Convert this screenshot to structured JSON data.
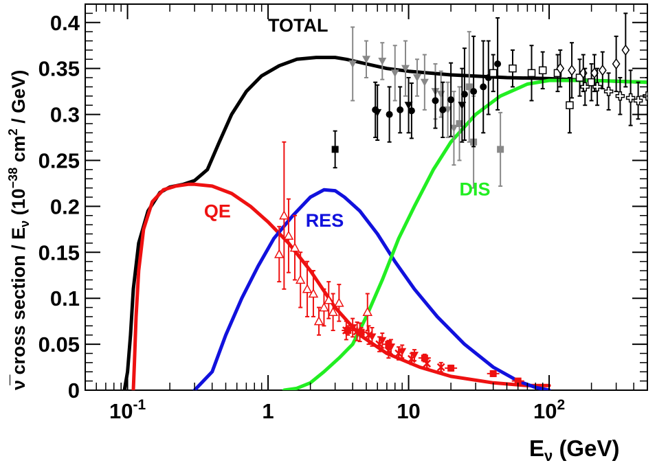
{
  "chart_data": {
    "type": "line",
    "xscale": "log",
    "xlim": [
      0.05,
      500
    ],
    "ylim": [
      0,
      0.42
    ],
    "xlabel": "E",
    "xlabel_sub": "ν",
    "xlabel_unit": "(GeV)",
    "ylabel_parts": {
      "prefix": "ν̅ cross section / E",
      "sub_nu": "ν",
      "open_unit": "(10",
      "exp": "−38",
      "cm": "cm",
      "sq": "2",
      "close_unit": "/ GeV)"
    },
    "x_ticks": [
      {
        "value": 0.1,
        "base": "10",
        "exp": "-1"
      },
      {
        "value": 1,
        "base": "1",
        "exp": ""
      },
      {
        "value": 10,
        "base": "10",
        "exp": ""
      },
      {
        "value": 100,
        "base": "10",
        "exp": "2"
      }
    ],
    "y_ticks": [
      {
        "value": 0,
        "label": "0"
      },
      {
        "value": 0.05,
        "label": "0.05"
      },
      {
        "value": 0.1,
        "label": "0.1"
      },
      {
        "value": 0.15,
        "label": "0.15"
      },
      {
        "value": 0.2,
        "label": "0.2"
      },
      {
        "value": 0.25,
        "label": "0.25"
      },
      {
        "value": 0.3,
        "label": "0.3"
      },
      {
        "value": 0.35,
        "label": "0.35"
      },
      {
        "value": 0.4,
        "label": "0.4"
      }
    ],
    "series": [
      {
        "name": "TOTAL",
        "color": "#000000",
        "label_at": [
          1.0,
          0.39
        ],
        "x": [
          0.095,
          0.1,
          0.105,
          0.11,
          0.12,
          0.14,
          0.17,
          0.2,
          0.25,
          0.3,
          0.37,
          0.45,
          0.55,
          0.7,
          0.9,
          1.2,
          1.6,
          2.2,
          3.0,
          3.6,
          5.0,
          7.0,
          10,
          20,
          50,
          100,
          200,
          500
        ],
        "y": [
          0.0,
          0.02,
          0.06,
          0.11,
          0.16,
          0.195,
          0.215,
          0.221,
          0.224,
          0.228,
          0.24,
          0.27,
          0.3,
          0.325,
          0.342,
          0.353,
          0.36,
          0.362,
          0.362,
          0.36,
          0.355,
          0.35,
          0.347,
          0.343,
          0.34,
          0.339,
          0.337,
          0.335
        ]
      },
      {
        "name": "QE",
        "color": "#ee1111",
        "label_at": [
          0.35,
          0.188
        ],
        "x": [
          0.11,
          0.112,
          0.115,
          0.12,
          0.13,
          0.15,
          0.18,
          0.22,
          0.27,
          0.3,
          0.4,
          0.55,
          0.75,
          1.0,
          1.4,
          2.0,
          3.0,
          4.5,
          7,
          12,
          20,
          40,
          70,
          100
        ],
        "y": [
          0.0,
          0.03,
          0.08,
          0.13,
          0.175,
          0.205,
          0.218,
          0.222,
          0.224,
          0.224,
          0.222,
          0.214,
          0.2,
          0.183,
          0.16,
          0.13,
          0.09,
          0.06,
          0.04,
          0.025,
          0.015,
          0.008,
          0.005,
          0.005
        ]
      },
      {
        "name": "RES",
        "color": "#1111dd",
        "label_at": [
          1.85,
          0.178
        ],
        "x": [
          0.3,
          0.4,
          0.5,
          0.65,
          0.85,
          1.1,
          1.5,
          2.0,
          2.5,
          3.0,
          3.5,
          4.5,
          6,
          8,
          11,
          16,
          25,
          40,
          60,
          80,
          100
        ],
        "y": [
          0.0,
          0.02,
          0.06,
          0.1,
          0.135,
          0.165,
          0.19,
          0.21,
          0.218,
          0.217,
          0.21,
          0.195,
          0.17,
          0.14,
          0.11,
          0.08,
          0.05,
          0.025,
          0.01,
          0.003,
          0.0
        ]
      },
      {
        "name": "DIS",
        "color": "#22ee22",
        "label_at": [
          23,
          0.212
        ],
        "x": [
          1.3,
          1.6,
          2.0,
          2.5,
          3.2,
          4.0,
          5.0,
          6.5,
          8.5,
          11,
          15,
          20,
          30,
          45,
          70,
          100,
          200,
          500
        ],
        "y": [
          0.0,
          0.002,
          0.008,
          0.02,
          0.035,
          0.05,
          0.08,
          0.12,
          0.165,
          0.2,
          0.24,
          0.27,
          0.3,
          0.32,
          0.333,
          0.337,
          0.337,
          0.335
        ]
      }
    ],
    "measurements": [
      {
        "name": "open triangles",
        "color": "#ee1111",
        "marker": "tri-open",
        "points": [
          [
            1.2,
            0.148,
            0.03
          ],
          [
            1.3,
            0.19,
            0.08
          ],
          [
            1.4,
            0.168,
            0.04
          ],
          [
            1.55,
            0.155,
            0.035
          ],
          [
            1.7,
            0.12,
            0.03
          ],
          [
            1.9,
            0.11,
            0.03
          ],
          [
            2.1,
            0.105,
            0.025
          ],
          [
            2.3,
            0.075,
            0.015
          ],
          [
            2.5,
            0.09,
            0.02
          ],
          [
            2.7,
            0.098,
            0.02
          ],
          [
            2.9,
            0.085,
            0.02
          ],
          [
            3.2,
            0.095,
            0.02
          ],
          [
            5.1,
            0.085,
            0.02
          ]
        ]
      },
      {
        "name": "filled down triangles",
        "color": "#ee1111",
        "marker": "tri-down",
        "points": [
          [
            4.0,
            0.068,
            0.01
          ],
          [
            4.5,
            0.063,
            0.01
          ],
          [
            5.5,
            0.058,
            0.01
          ],
          [
            6.5,
            0.054,
            0.008
          ],
          [
            7.5,
            0.047,
            0.008
          ],
          [
            9.0,
            0.042,
            0.007
          ],
          [
            11,
            0.038,
            0.006
          ]
        ]
      },
      {
        "name": "stars",
        "color": "#ee1111",
        "marker": "star",
        "points": [
          [
            3.6,
            0.065,
            0.01
          ],
          [
            4.3,
            0.064,
            0.01
          ],
          [
            5.2,
            0.06,
            0.01
          ],
          [
            6.2,
            0.05,
            0.008
          ],
          [
            7.2,
            0.043,
            0.008
          ],
          [
            8.5,
            0.04,
            0.007
          ],
          [
            10.5,
            0.034,
            0.006
          ],
          [
            13.5,
            0.029,
            0.005
          ],
          [
            17,
            0.025,
            0.005
          ]
        ]
      },
      {
        "name": "red squares",
        "color": "#ee1111",
        "marker": "square",
        "points": [
          [
            3.7,
            0.065,
            0.005
          ],
          [
            4.6,
            0.063,
            0.005
          ],
          [
            7.2,
            0.05,
            0.004
          ],
          [
            13,
            0.035,
            0.004
          ],
          [
            20,
            0.024,
            0.003
          ],
          [
            40,
            0.018,
            0.003
          ],
          [
            60,
            0.01,
            0.002
          ]
        ]
      },
      {
        "name": "gray down triangles",
        "color": "#888888",
        "marker": "tri-down",
        "points": [
          [
            4.0,
            0.355,
            0.04
          ],
          [
            5.0,
            0.36,
            0.02
          ],
          [
            6.5,
            0.358,
            0.02
          ],
          [
            8.0,
            0.345,
            0.03
          ],
          [
            9.5,
            0.35,
            0.03
          ],
          [
            11.5,
            0.34,
            0.02
          ],
          [
            13,
            0.335,
            0.03
          ],
          [
            15.5,
            0.325,
            0.03
          ],
          [
            17,
            0.322,
            0.025
          ],
          [
            19,
            0.305,
            0.03
          ],
          [
            21,
            0.285,
            0.04
          ]
        ]
      },
      {
        "name": "gray squares",
        "color": "#888888",
        "marker": "square",
        "points": [
          [
            23,
            0.29,
            0.04
          ],
          [
            27,
            0.33,
            0.06
          ],
          [
            29,
            0.27,
            0.05
          ],
          [
            45,
            0.262,
            0.04
          ]
        ]
      },
      {
        "name": "black circles",
        "color": "#000000",
        "marker": "circle",
        "points": [
          [
            5.8,
            0.305,
            0.03
          ],
          [
            7.3,
            0.3,
            0.03
          ],
          [
            8.7,
            0.305,
            0.025
          ],
          [
            10.5,
            0.304,
            0.03
          ],
          [
            15.5,
            0.315,
            0.03
          ],
          [
            17.5,
            0.305,
            0.03
          ],
          [
            20,
            0.316,
            0.04
          ],
          [
            25,
            0.322,
            0.05
          ],
          [
            29,
            0.325,
            0.06
          ],
          [
            34,
            0.33,
            0.05
          ],
          [
            37,
            0.34,
            0.04
          ],
          [
            43,
            0.355,
            0.05
          ]
        ]
      },
      {
        "name": "black down triangles",
        "color": "#000000",
        "marker": "tri-down",
        "points": [
          [
            6.0,
            0.302,
            0.03
          ],
          [
            10.0,
            0.31,
            0.03
          ],
          [
            24,
            0.31,
            0.04
          ]
        ]
      },
      {
        "name": "black square",
        "color": "#000000",
        "marker": "square",
        "points": [
          [
            3.0,
            0.262,
            0.02
          ]
        ]
      },
      {
        "name": "open squares",
        "color": "#000000",
        "marker": "square-open",
        "points": [
          [
            40,
            0.345,
            0.02
          ],
          [
            55,
            0.35,
            0.02
          ],
          [
            75,
            0.345,
            0.03
          ],
          [
            90,
            0.348,
            0.02
          ],
          [
            115,
            0.345,
            0.02
          ],
          [
            140,
            0.31,
            0.03
          ],
          [
            165,
            0.34,
            0.02
          ],
          [
            200,
            0.335,
            0.02
          ]
        ]
      },
      {
        "name": "open diamonds",
        "color": "#000000",
        "marker": "diamond-open",
        "points": [
          [
            120,
            0.35,
            0.02
          ],
          [
            145,
            0.348,
            0.03
          ],
          [
            175,
            0.345,
            0.02
          ],
          [
            210,
            0.345,
            0.02
          ],
          [
            240,
            0.348,
            0.02
          ],
          [
            300,
            0.355,
            0.03
          ],
          [
            350,
            0.37,
            0.04
          ]
        ]
      },
      {
        "name": "open crosses",
        "color": "#000000",
        "marker": "cross-open",
        "points": [
          [
            180,
            0.33,
            0.02
          ],
          [
            220,
            0.33,
            0.02
          ],
          [
            265,
            0.325,
            0.02
          ],
          [
            320,
            0.32,
            0.02
          ],
          [
            380,
            0.318,
            0.03
          ],
          [
            430,
            0.315,
            0.02
          ],
          [
            500,
            0.32,
            0.02
          ]
        ]
      }
    ]
  }
}
